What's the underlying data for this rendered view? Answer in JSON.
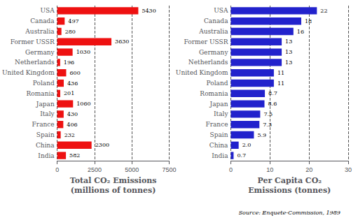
{
  "chart_data": [
    {
      "type": "bar",
      "orientation": "horizontal",
      "xlabel": "Total CO₂ Emissions\n(millions of tonnes)",
      "categories": [
        "USA",
        "Canada",
        "Australia",
        "Former USSR",
        "Germany",
        "Netherlands",
        "United Kingdom",
        "Poland",
        "Romania",
        "Japan",
        "Italy",
        "France",
        "Spain",
        "China",
        "India"
      ],
      "values": [
        5430,
        497,
        280,
        3630,
        1030,
        196,
        600,
        436,
        201,
        1060,
        430,
        406,
        232,
        2300,
        582
      ],
      "color": "#ee1111",
      "xlim": [
        0,
        7500
      ],
      "xticks": [
        0,
        2500,
        5000,
        7500
      ],
      "grid": true,
      "data_labels": true
    },
    {
      "type": "bar",
      "orientation": "horizontal",
      "xlabel": "Per Capita CO₂\nEmissions (tonnes)",
      "categories": [
        "USA",
        "Canada",
        "Australia",
        "Former USSR",
        "Germany",
        "Netherlands",
        "United Kingdom",
        "Poland",
        "Romania",
        "Japan",
        "Italy",
        "France",
        "Spain",
        "China",
        "India"
      ],
      "values": [
        22,
        18,
        16,
        13,
        13,
        13,
        11,
        11,
        8.7,
        8.6,
        7.5,
        7.3,
        5.9,
        2.0,
        0.7
      ],
      "value_labels": [
        "22",
        "18",
        "16",
        "13",
        "13",
        "13",
        "11",
        "11",
        "8.7",
        "8.6",
        "7.5",
        "7.3",
        "5.9",
        "2.0",
        "0.7"
      ],
      "color": "#2222cc",
      "xlim": [
        0,
        30
      ],
      "xticks": [
        0,
        10,
        20,
        30
      ],
      "grid": true,
      "data_labels": true,
      "annotations": [
        "Source: Enquete-Commission, 1989"
      ]
    }
  ]
}
